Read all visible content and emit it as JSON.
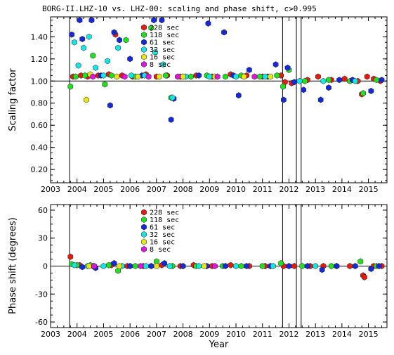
{
  "chart_data": [
    {
      "type": "scatter",
      "title": "BORG-II.LHZ-10 vs. LHZ-00: scaling and phase shift, c>0.995",
      "xlabel": "",
      "ylabel": "Scaling factor",
      "xlim": [
        2003.0,
        2015.7
      ],
      "ylim": [
        0.08,
        1.58
      ],
      "x_ticks": [
        2003,
        2004,
        2005,
        2006,
        2007,
        2008,
        2009,
        2010,
        2011,
        2012,
        2013,
        2014,
        2015
      ],
      "x_tick_labels": [
        "2003",
        "2004",
        "2005",
        "2006",
        "2007",
        "2008",
        "2009",
        "2010",
        "2011",
        "2012",
        "2013",
        "2014",
        "2015"
      ],
      "y_ticks": [
        0.2,
        0.4,
        0.6,
        0.8,
        1.0,
        1.2,
        1.4
      ],
      "y_tick_labels": [
        "0.20",
        "0.40",
        "0.60",
        "0.80",
        "1.00",
        "1.20",
        "1.40"
      ],
      "reference_line": 1.0,
      "vertical_lines": [
        2003.72,
        2011.76,
        2012.28,
        2012.46
      ],
      "legend_position": "top-left-center",
      "series": [
        {
          "name": "228 sec",
          "color": "#e8190f",
          "points": [
            [
              2003.85,
              1.04
            ],
            [
              2004.15,
              1.05
            ],
            [
              2004.4,
              1.04
            ],
            [
              2004.8,
              1.05
            ],
            [
              2005.2,
              1.06
            ],
            [
              2005.45,
              1.42
            ],
            [
              2005.7,
              1.05
            ],
            [
              2006.1,
              1.04
            ],
            [
              2006.6,
              1.06
            ],
            [
              2007.0,
              1.04
            ],
            [
              2007.4,
              1.05
            ],
            [
              2007.9,
              1.04
            ],
            [
              2008.5,
              1.05
            ],
            [
              2009.1,
              1.04
            ],
            [
              2009.8,
              1.06
            ],
            [
              2010.4,
              1.05
            ],
            [
              2011.0,
              1.04
            ],
            [
              2011.7,
              1.05
            ],
            [
              2011.85,
              0.99
            ],
            [
              2012.1,
              0.98
            ],
            [
              2012.7,
              1.01
            ],
            [
              2013.1,
              1.04
            ],
            [
              2013.6,
              1.01
            ],
            [
              2014.1,
              1.02
            ],
            [
              2014.6,
              1.0
            ],
            [
              2014.75,
              0.88
            ],
            [
              2014.95,
              1.04
            ],
            [
              2015.2,
              1.02
            ],
            [
              2015.45,
              1.0
            ]
          ]
        },
        {
          "name": "118 sec",
          "color": "#1ee01e",
          "points": [
            [
              2003.75,
              0.95
            ],
            [
              2003.95,
              1.04
            ],
            [
              2004.3,
              1.05
            ],
            [
              2004.6,
              1.23
            ],
            [
              2005.05,
              0.97
            ],
            [
              2005.3,
              1.05
            ],
            [
              2005.85,
              1.37
            ],
            [
              2006.2,
              1.04
            ],
            [
              2006.8,
              1.48
            ],
            [
              2007.35,
              1.05
            ],
            [
              2007.55,
              0.85
            ],
            [
              2008.3,
              1.04
            ],
            [
              2008.9,
              1.05
            ],
            [
              2009.6,
              1.04
            ],
            [
              2010.2,
              1.05
            ],
            [
              2010.9,
              1.04
            ],
            [
              2011.55,
              1.05
            ],
            [
              2011.78,
              0.95
            ],
            [
              2012.0,
              1.1
            ],
            [
              2012.6,
              1.0
            ],
            [
              2013.5,
              1.01
            ],
            [
              2014.3,
              1.0
            ],
            [
              2014.8,
              0.89
            ],
            [
              2015.3,
              1.01
            ]
          ]
        },
        {
          "name": "61 sec",
          "color": "#1428dc",
          "points": [
            [
              2003.8,
              1.42
            ],
            [
              2004.1,
              1.55
            ],
            [
              2004.2,
              1.38
            ],
            [
              2004.55,
              1.55
            ],
            [
              2004.9,
              1.05
            ],
            [
              2005.25,
              0.78
            ],
            [
              2005.4,
              1.44
            ],
            [
              2005.6,
              1.37
            ],
            [
              2006.0,
              1.2
            ],
            [
              2006.45,
              1.05
            ],
            [
              2006.9,
              1.55
            ],
            [
              2007.2,
              1.55
            ],
            [
              2007.55,
              0.65
            ],
            [
              2007.65,
              0.84
            ],
            [
              2008.0,
              1.04
            ],
            [
              2008.6,
              1.05
            ],
            [
              2008.95,
              1.52
            ],
            [
              2009.55,
              1.44
            ],
            [
              2009.9,
              1.05
            ],
            [
              2010.1,
              0.87
            ],
            [
              2010.5,
              1.1
            ],
            [
              2011.2,
              1.04
            ],
            [
              2011.5,
              1.15
            ],
            [
              2011.8,
              0.83
            ],
            [
              2011.95,
              1.12
            ],
            [
              2012.2,
              0.99
            ],
            [
              2012.55,
              0.92
            ],
            [
              2013.2,
              0.83
            ],
            [
              2013.5,
              0.94
            ],
            [
              2013.9,
              1.01
            ],
            [
              2014.4,
              1.01
            ],
            [
              2015.1,
              0.91
            ],
            [
              2015.5,
              1.01
            ]
          ]
        },
        {
          "name": "32 sec",
          "color": "#14e6e6",
          "points": [
            [
              2003.9,
              1.35
            ],
            [
              2004.05,
              1.14
            ],
            [
              2004.25,
              1.3
            ],
            [
              2004.45,
              1.4
            ],
            [
              2004.7,
              1.12
            ],
            [
              2005.0,
              1.05
            ],
            [
              2005.15,
              1.18
            ],
            [
              2005.55,
              1.3
            ],
            [
              2006.05,
              1.05
            ],
            [
              2006.55,
              1.05
            ],
            [
              2006.95,
              1.26
            ],
            [
              2007.25,
              1.15
            ],
            [
              2007.6,
              0.85
            ],
            [
              2008.1,
              1.04
            ],
            [
              2009.0,
              1.04
            ],
            [
              2010.0,
              1.04
            ],
            [
              2011.1,
              1.04
            ],
            [
              2012.4,
              1.0
            ],
            [
              2013.3,
              1.0
            ],
            [
              2014.5,
              1.0
            ]
          ]
        },
        {
          "name": "16 sec",
          "color": "#e6e614",
          "points": [
            [
              2004.35,
              0.83
            ],
            [
              2004.5,
              1.06
            ],
            [
              2005.5,
              1.04
            ],
            [
              2006.3,
              1.04
            ],
            [
              2007.1,
              1.04
            ],
            [
              2008.0,
              1.04
            ],
            [
              2009.2,
              1.04
            ],
            [
              2010.3,
              1.04
            ],
            [
              2011.3,
              1.04
            ]
          ]
        },
        {
          "name": "8 sec",
          "color": "#e014e0",
          "points": [
            [
              2004.6,
              1.04
            ],
            [
              2005.8,
              1.04
            ],
            [
              2006.7,
              1.04
            ],
            [
              2007.8,
              1.04
            ],
            [
              2009.3,
              1.04
            ],
            [
              2010.7,
              1.04
            ]
          ]
        }
      ]
    },
    {
      "type": "scatter",
      "title": "",
      "xlabel": "Year",
      "ylabel": "Phase shift (degrees)",
      "xlim": [
        2003.0,
        2015.7
      ],
      "ylim": [
        -66,
        66
      ],
      "x_ticks": [
        2003,
        2004,
        2005,
        2006,
        2007,
        2008,
        2009,
        2010,
        2011,
        2012,
        2013,
        2014,
        2015
      ],
      "x_tick_labels": [
        "2003",
        "2004",
        "2005",
        "2006",
        "2007",
        "2008",
        "2009",
        "2010",
        "2011",
        "2012",
        "2013",
        "2014",
        "2015"
      ],
      "y_ticks": [
        -60,
        -30,
        0,
        30,
        60
      ],
      "y_tick_labels": [
        "-60",
        "-30",
        "0",
        "30",
        "60"
      ],
      "reference_line": 0,
      "vertical_lines": [
        2003.72,
        2011.76,
        2012.28,
        2012.46
      ],
      "legend_position": "top-left-center",
      "series": [
        {
          "name": "228 sec",
          "color": "#e8190f",
          "points": [
            [
              2003.75,
              10
            ],
            [
              2004.1,
              1
            ],
            [
              2004.6,
              0
            ],
            [
              2005.3,
              1
            ],
            [
              2005.9,
              0
            ],
            [
              2006.5,
              0
            ],
            [
              2007.2,
              1
            ],
            [
              2007.9,
              0
            ],
            [
              2008.4,
              1
            ],
            [
              2009.1,
              0
            ],
            [
              2009.8,
              1
            ],
            [
              2010.5,
              0
            ],
            [
              2011.1,
              0
            ],
            [
              2011.8,
              0
            ],
            [
              2012.2,
              0
            ],
            [
              2012.8,
              0
            ],
            [
              2013.3,
              0
            ],
            [
              2013.8,
              0
            ],
            [
              2014.3,
              0
            ],
            [
              2014.8,
              -10
            ],
            [
              2014.85,
              -12
            ],
            [
              2015.2,
              0
            ],
            [
              2015.5,
              0
            ]
          ]
        },
        {
          "name": "118 sec",
          "color": "#1ee01e",
          "points": [
            [
              2003.8,
              2
            ],
            [
              2004.0,
              1
            ],
            [
              2004.5,
              1
            ],
            [
              2005.2,
              1
            ],
            [
              2005.55,
              -5
            ],
            [
              2006.2,
              0
            ],
            [
              2007.0,
              5
            ],
            [
              2007.6,
              0
            ],
            [
              2008.5,
              0
            ],
            [
              2009.5,
              0
            ],
            [
              2010.2,
              0
            ],
            [
              2011.0,
              0
            ],
            [
              2011.7,
              3
            ],
            [
              2012.5,
              0
            ],
            [
              2013.6,
              0
            ],
            [
              2014.7,
              5
            ],
            [
              2015.3,
              0
            ]
          ]
        },
        {
          "name": "61 sec",
          "color": "#1428dc",
          "points": [
            [
              2004.2,
              -1
            ],
            [
              2004.7,
              -2
            ],
            [
              2005.4,
              3
            ],
            [
              2006.0,
              0
            ],
            [
              2006.8,
              0
            ],
            [
              2007.3,
              3
            ],
            [
              2008.0,
              0
            ],
            [
              2008.9,
              0
            ],
            [
              2009.6,
              0
            ],
            [
              2010.4,
              0
            ],
            [
              2011.3,
              0
            ],
            [
              2012.0,
              0
            ],
            [
              2012.7,
              0
            ],
            [
              2013.25,
              -4
            ],
            [
              2013.8,
              0
            ],
            [
              2014.5,
              0
            ],
            [
              2015.1,
              -3
            ],
            [
              2015.4,
              0
            ]
          ]
        },
        {
          "name": "32 sec",
          "color": "#14e6e6",
          "points": [
            [
              2003.9,
              1
            ],
            [
              2004.4,
              0
            ],
            [
              2005.0,
              0
            ],
            [
              2005.7,
              0
            ],
            [
              2006.6,
              0
            ],
            [
              2007.5,
              0
            ],
            [
              2008.6,
              0
            ],
            [
              2010.0,
              0
            ],
            [
              2011.4,
              0
            ],
            [
              2013.0,
              0
            ]
          ]
        },
        {
          "name": "16 sec",
          "color": "#e6e614",
          "points": [
            [
              2004.45,
              0
            ],
            [
              2005.6,
              0
            ],
            [
              2007.0,
              0
            ],
            [
              2008.8,
              0
            ]
          ]
        },
        {
          "name": "8 sec",
          "color": "#e014e0",
          "points": [
            [
              2004.65,
              0
            ],
            [
              2006.4,
              0
            ],
            [
              2009.2,
              0
            ]
          ]
        }
      ]
    }
  ]
}
